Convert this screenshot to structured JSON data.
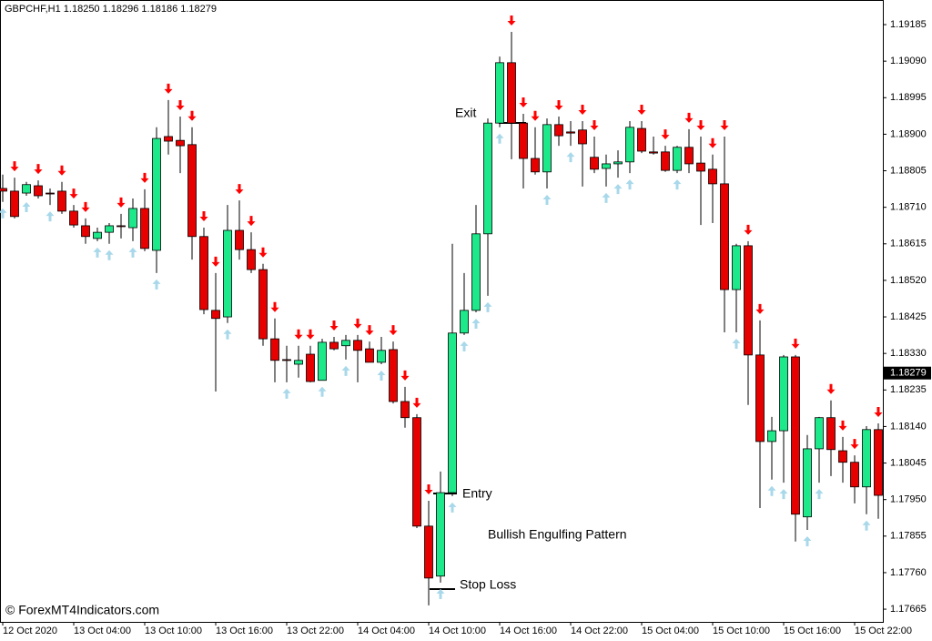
{
  "chart_data": {
    "type": "candlestick",
    "title": "GBPCHF,H1  1.18250 1.18296 1.18186 1.18279",
    "watermark": "© ForexMT4Indicators.com",
    "categories": [
      "12 Oct 2020",
      null,
      null,
      null,
      null,
      null,
      "13 Oct 04:00",
      null,
      null,
      null,
      null,
      null,
      "13 Oct 10:00",
      null,
      null,
      null,
      null,
      null,
      "13 Oct 16:00",
      null,
      null,
      null,
      null,
      null,
      "13 Oct 22:00",
      null,
      null,
      null,
      null,
      null,
      "14 Oct 04:00",
      null,
      null,
      null,
      null,
      null,
      "14 Oct 10:00",
      null,
      null,
      null,
      null,
      null,
      "14 Oct 16:00",
      null,
      null,
      null,
      null,
      null,
      "14 Oct 22:00",
      null,
      null,
      null,
      null,
      null,
      "15 Oct 04:00",
      null,
      null,
      null,
      null,
      null,
      "15 Oct 10:00",
      null,
      null,
      null,
      null,
      null,
      "15 Oct 16:00",
      null,
      null,
      null,
      null,
      null,
      "15 Oct 22:00",
      null,
      null
    ],
    "open": [
      1.18759,
      1.18752,
      1.18747,
      1.18766,
      1.18747,
      1.18752,
      1.187,
      1.18662,
      1.18629,
      1.18645,
      1.18662,
      1.18657,
      1.18707,
      1.18598,
      1.18894,
      1.18884,
      1.18873,
      1.18634,
      1.18442,
      1.18425,
      1.1865,
      1.186,
      1.18548,
      1.18368,
      1.18314,
      1.18302,
      1.18328,
      1.1826,
      1.18359,
      1.1835,
      1.18364,
      1.18342,
      1.18307,
      1.1834,
      1.18205,
      1.18163,
      1.17881,
      1.17751,
      1.17968,
      1.18383,
      1.18442,
      1.18641,
      1.18929,
      1.19086,
      1.18929,
      1.18837,
      1.18802,
      1.18925,
      1.18906,
      1.18911,
      1.1884,
      1.18811,
      1.18823,
      1.18828,
      1.18915,
      1.18854,
      1.18854,
      1.18806,
      1.18866,
      1.18825,
      1.18809,
      1.18771,
      1.18496,
      1.1861,
      1.18326,
      1.18101,
      1.18129,
      1.18321,
      1.17905,
      1.18082,
      1.18163,
      1.18077,
      1.18047,
      1.17983,
      1.18132
    ],
    "high": [
      1.18795,
      1.18787,
      1.18776,
      1.1878,
      1.18759,
      1.18776,
      1.18716,
      1.18681,
      1.18657,
      1.18669,
      1.18693,
      1.18733,
      1.18757,
      1.18918,
      1.18989,
      1.18946,
      1.18918,
      1.18657,
      1.18539,
      1.18716,
      1.18728,
      1.18645,
      1.18563,
      1.18421,
      1.1835,
      1.1835,
      1.1835,
      1.18368,
      1.18373,
      1.18378,
      1.18378,
      1.18361,
      1.18373,
      1.18361,
      1.18243,
      1.18172,
      1.17947,
      1.18023,
      1.18615,
      1.18539,
      1.18716,
      1.18941,
      1.19102,
      1.19166,
      1.18953,
      1.18918,
      1.18941,
      1.18946,
      1.18934,
      1.18934,
      1.18894,
      1.18847,
      1.18858,
      1.18934,
      1.18934,
      1.18894,
      1.1887,
      1.1887,
      1.18913,
      1.18894,
      1.18847,
      1.18894,
      1.18615,
      1.18622,
      1.18416,
      1.18165,
      1.18326,
      1.18326,
      1.18118,
      1.18165,
      1.18208,
      1.18113,
      1.18065,
      1.18141,
      1.18148
    ],
    "low": [
      1.18724,
      1.18681,
      1.1874,
      1.18733,
      1.18716,
      1.18693,
      1.18657,
      1.18615,
      1.18622,
      1.18615,
      1.18629,
      1.18622,
      1.18596,
      1.18539,
      1.18847,
      1.18799,
      1.18574,
      1.18432,
      1.18231,
      1.18409,
      1.18574,
      1.18539,
      1.1835,
      1.18255,
      1.18255,
      1.18267,
      1.18255,
      1.1826,
      1.18338,
      1.18314,
      1.18255,
      1.18307,
      1.18302,
      1.182,
      1.18137,
      1.17876,
      1.17675,
      1.17734,
      1.17959,
      1.18378,
      1.18437,
      1.1848,
      1.18918,
      1.18835,
      1.18759,
      1.18795,
      1.18759,
      1.1887,
      1.1887,
      1.18764,
      1.18799,
      1.18764,
      1.18787,
      1.18799,
      1.18851,
      1.18847,
      1.18802,
      1.18799,
      1.18799,
      1.18664,
      1.18669,
      1.18385,
      1.18385,
      1.18196,
      1.17928,
      1.18002,
      1.17994,
      1.17841,
      1.17871,
      1.17994,
      1.18011,
      1.17994,
      1.1794,
      1.17912,
      1.179
    ],
    "close": [
      1.18752,
      1.18686,
      1.18769,
      1.1874,
      1.18745,
      1.187,
      1.18664,
      1.18634,
      1.18645,
      1.18662,
      1.1866,
      1.18707,
      1.18603,
      1.18889,
      1.18882,
      1.1887,
      1.18634,
      1.18444,
      1.18421,
      1.1865,
      1.186,
      1.18548,
      1.18368,
      1.18312,
      1.18312,
      1.18312,
      1.18257,
      1.18359,
      1.18342,
      1.18364,
      1.18338,
      1.18307,
      1.18338,
      1.18205,
      1.18163,
      1.17881,
      1.17746,
      1.17968,
      1.18383,
      1.18442,
      1.18641,
      1.18929,
      1.19086,
      1.18929,
      1.18837,
      1.18802,
      1.18925,
      1.18896,
      1.18903,
      1.18875,
      1.18809,
      1.18823,
      1.18828,
      1.18918,
      1.18856,
      1.18851,
      1.18806,
      1.18866,
      1.18823,
      1.18804,
      1.18771,
      1.18496,
      1.1861,
      1.18326,
      1.18101,
      1.18129,
      1.18321,
      1.17912,
      1.18082,
      1.18163,
      1.1808,
      1.18047,
      1.17983,
      1.18132,
      1.17961
    ],
    "signals": [
      "up",
      "down",
      "up",
      "down",
      "up",
      "down",
      "down",
      "down",
      "up",
      "up",
      "down",
      "up",
      "down",
      "up",
      "down",
      "down",
      "down",
      "down",
      "down",
      "up",
      "down",
      "down",
      "down",
      "down",
      "up",
      "down",
      "down",
      "up",
      "down",
      "up",
      "down",
      "down",
      "up",
      "down",
      "down",
      "down",
      "down",
      "up",
      "up",
      "up",
      "up",
      "up",
      "up",
      "down",
      "down",
      "down",
      "up",
      "down",
      "up",
      "down",
      "down",
      "up",
      "up",
      "up",
      "down",
      null,
      "down",
      "up",
      "down",
      "down",
      "down",
      "down",
      "up",
      "down",
      "down",
      "up",
      "up",
      "down",
      "up",
      "up",
      "down",
      "down",
      "down",
      "up",
      "down"
    ],
    "up_color": "#1de98b",
    "down_color": "#e60000",
    "up_signal_color": "#a8d8ea",
    "down_signal_color": "#ff0000",
    "ylim": [
      1.17632,
      1.19249
    ],
    "yticks": [
      1.19185,
      {
        "value": 1.1909,
        "label": "1.19090"
      },
      1.18995,
      {
        "value": 1.189,
        "label": "1.18900"
      },
      1.18805,
      {
        "value": 1.1871,
        "label": "1.18710"
      },
      1.18615,
      {
        "value": 1.1852,
        "label": "1.18520"
      },
      1.18425,
      {
        "value": 1.1833,
        "label": "1.18330"
      },
      1.18235,
      {
        "value": 1.1814,
        "label": "1.18140"
      },
      1.18045,
      {
        "value": 1.1795,
        "label": "1.17950"
      },
      1.17855,
      {
        "value": 1.1776,
        "label": "1.17760"
      },
      1.17665
    ],
    "last_price": 1.18279,
    "annotations": [
      "Exit",
      "Entry",
      "Stop Loss",
      "Bullish Engulfing Pattern"
    ]
  }
}
